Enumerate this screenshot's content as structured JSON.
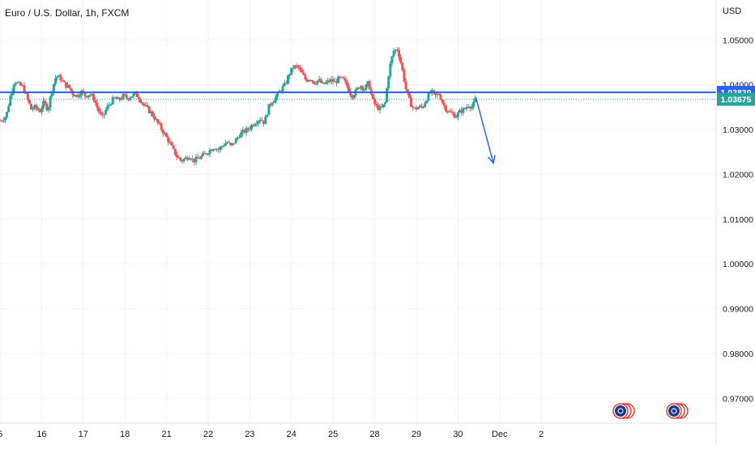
{
  "header": {
    "symbol_title": "Euro / U.S. Dollar, 1h, FXCM",
    "currency_unit": "USD"
  },
  "colors": {
    "up": "#26a69a",
    "down": "#ef5350",
    "resistance": "#2962ff",
    "price_label": "#26a69a",
    "grid": "#f0f3fa",
    "axis_text": "#131722"
  },
  "chart_data": {
    "type": "candlestick",
    "title": "Euro / U.S. Dollar, 1h, FXCM",
    "ylabel": "USD",
    "ylim": [
      0.965,
      1.0535
    ],
    "xlim": [
      15,
      32.2
    ],
    "grid": true,
    "y_ticks": [
      "1.05000",
      "1.04000",
      "1.03000",
      "1.02000",
      "1.01000",
      "1.00000",
      "0.99000",
      "0.98000",
      "0.97000"
    ],
    "x_ticks": [
      {
        "label": "5",
        "x": 15
      },
      {
        "label": "16",
        "x": 16
      },
      {
        "label": "17",
        "x": 17
      },
      {
        "label": "18",
        "x": 18
      },
      {
        "label": "21",
        "x": 19
      },
      {
        "label": "22",
        "x": 20
      },
      {
        "label": "23",
        "x": 21
      },
      {
        "label": "24",
        "x": 22
      },
      {
        "label": "25",
        "x": 23
      },
      {
        "label": "28",
        "x": 24
      },
      {
        "label": "29",
        "x": 25
      },
      {
        "label": "30",
        "x": 26
      },
      {
        "label": "Dec",
        "x": 27
      },
      {
        "label": "2",
        "x": 28
      }
    ],
    "resistance_level": {
      "value": 1.0383,
      "label": "1.03830"
    },
    "current_price": {
      "value": 1.03675,
      "label": "1.03675"
    },
    "projection_arrow": {
      "from": [
        26.43,
        1.0372
      ],
      "to": [
        26.85,
        1.0225
      ]
    },
    "price_path": [
      [
        15.0,
        1.032
      ],
      [
        15.15,
        1.033
      ],
      [
        15.25,
        1.0375
      ],
      [
        15.35,
        1.041
      ],
      [
        15.45,
        1.04
      ],
      [
        15.55,
        1.0395
      ],
      [
        15.65,
        1.037
      ],
      [
        15.75,
        1.0345
      ],
      [
        15.85,
        1.035
      ],
      [
        15.95,
        1.034
      ],
      [
        16.05,
        1.036
      ],
      [
        16.15,
        1.0345
      ],
      [
        16.25,
        1.039
      ],
      [
        16.35,
        1.042
      ],
      [
        16.45,
        1.0415
      ],
      [
        16.55,
        1.04
      ],
      [
        16.65,
        1.0395
      ],
      [
        16.75,
        1.038
      ],
      [
        16.85,
        1.0375
      ],
      [
        16.95,
        1.0385
      ],
      [
        17.05,
        1.0375
      ],
      [
        17.15,
        1.038
      ],
      [
        17.25,
        1.037
      ],
      [
        17.35,
        1.0345
      ],
      [
        17.45,
        1.0325
      ],
      [
        17.55,
        1.0345
      ],
      [
        17.65,
        1.036
      ],
      [
        17.75,
        1.037
      ],
      [
        17.85,
        1.0365
      ],
      [
        17.95,
        1.0375
      ],
      [
        18.05,
        1.037
      ],
      [
        18.15,
        1.0375
      ],
      [
        18.25,
        1.038
      ],
      [
        18.35,
        1.037
      ],
      [
        18.45,
        1.0355
      ],
      [
        18.55,
        1.0345
      ],
      [
        18.65,
        1.0335
      ],
      [
        18.75,
        1.032
      ],
      [
        18.85,
        1.0305
      ],
      [
        18.95,
        1.029
      ],
      [
        19.05,
        1.0275
      ],
      [
        19.15,
        1.0255
      ],
      [
        19.25,
        1.024
      ],
      [
        19.35,
        1.023
      ],
      [
        19.45,
        1.0235
      ],
      [
        19.55,
        1.0242
      ],
      [
        19.65,
        1.023
      ],
      [
        19.75,
        1.0235
      ],
      [
        19.85,
        1.024
      ],
      [
        19.95,
        1.0247
      ],
      [
        20.05,
        1.0255
      ],
      [
        20.15,
        1.0262
      ],
      [
        20.25,
        1.0255
      ],
      [
        20.35,
        1.0265
      ],
      [
        20.45,
        1.0272
      ],
      [
        20.55,
        1.0262
      ],
      [
        20.65,
        1.0275
      ],
      [
        20.75,
        1.0288
      ],
      [
        20.85,
        1.0295
      ],
      [
        20.95,
        1.03
      ],
      [
        21.05,
        1.031
      ],
      [
        21.15,
        1.0318
      ],
      [
        21.25,
        1.0325
      ],
      [
        21.35,
        1.0315
      ],
      [
        21.45,
        1.035
      ],
      [
        21.55,
        1.0365
      ],
      [
        21.65,
        1.0375
      ],
      [
        21.75,
        1.039
      ],
      [
        21.85,
        1.04
      ],
      [
        21.95,
        1.0425
      ],
      [
        22.05,
        1.044
      ],
      [
        22.15,
        1.044
      ],
      [
        22.25,
        1.0425
      ],
      [
        22.35,
        1.041
      ],
      [
        22.45,
        1.0415
      ],
      [
        22.55,
        1.0405
      ],
      [
        22.65,
        1.041
      ],
      [
        22.75,
        1.04
      ],
      [
        22.85,
        1.0405
      ],
      [
        22.95,
        1.041
      ],
      [
        23.05,
        1.0405
      ],
      [
        23.15,
        1.0415
      ],
      [
        23.25,
        1.041
      ],
      [
        23.35,
        1.0395
      ],
      [
        23.45,
        1.0375
      ],
      [
        23.55,
        1.0385
      ],
      [
        23.65,
        1.04
      ],
      [
        23.75,
        1.039
      ],
      [
        23.85,
        1.0405
      ],
      [
        23.95,
        1.0365
      ],
      [
        24.05,
        1.035
      ],
      [
        24.15,
        1.0345
      ],
      [
        24.25,
        1.036
      ],
      [
        24.35,
        1.0435
      ],
      [
        24.45,
        1.0475
      ],
      [
        24.55,
        1.048
      ],
      [
        24.65,
        1.044
      ],
      [
        24.75,
        1.039
      ],
      [
        24.85,
        1.036
      ],
      [
        24.95,
        1.0345
      ],
      [
        25.05,
        1.035
      ],
      [
        25.15,
        1.035
      ],
      [
        25.25,
        1.037
      ],
      [
        25.35,
        1.0385
      ],
      [
        25.45,
        1.0375
      ],
      [
        25.55,
        1.038
      ],
      [
        25.65,
        1.0355
      ],
      [
        25.75,
        1.0342
      ],
      [
        25.85,
        1.0335
      ],
      [
        25.95,
        1.033
      ],
      [
        26.05,
        1.034
      ],
      [
        26.15,
        1.0345
      ],
      [
        26.25,
        1.0355
      ],
      [
        26.35,
        1.035
      ],
      [
        26.42,
        1.03675
      ]
    ]
  }
}
